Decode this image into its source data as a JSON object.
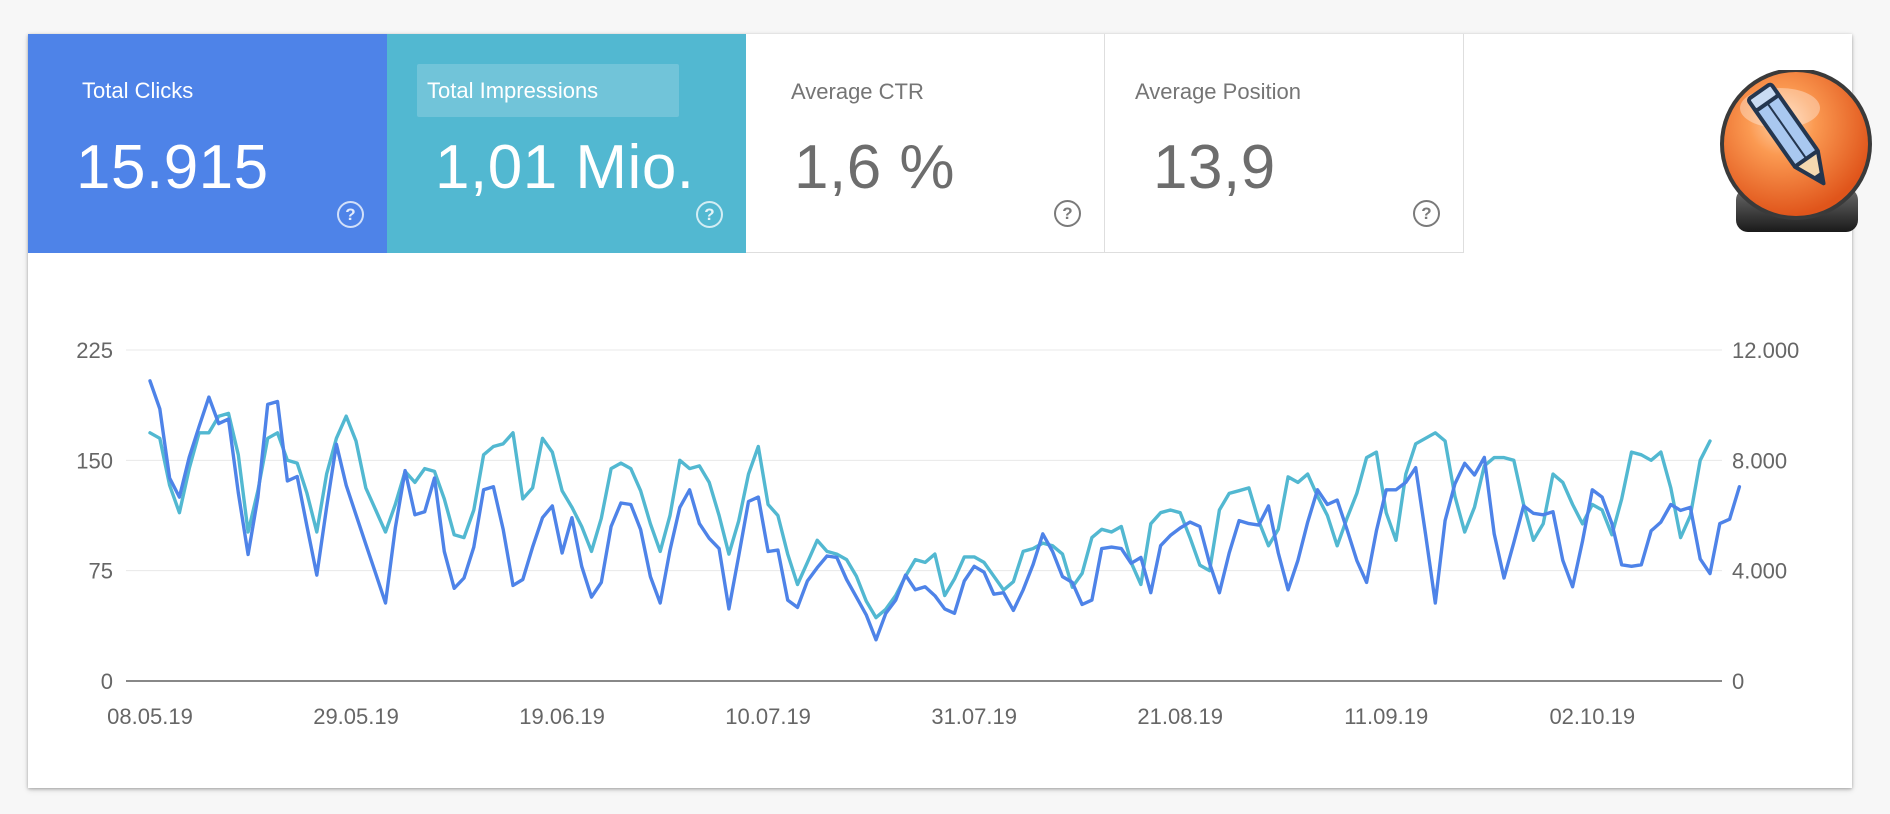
{
  "cards": [
    {
      "label": "Total Clicks",
      "value": "15.915"
    },
    {
      "label": "Total Impressions",
      "value": "1,01 Mio."
    },
    {
      "label": "Average CTR",
      "value": "1,6 %"
    },
    {
      "label": "Average Position",
      "value": "13,9"
    }
  ],
  "help_glyph": "?",
  "badge_icon": "pencil-icon",
  "colors": {
    "clicks": "#4e83e8",
    "impressions": "#52b8d1",
    "grid": "#e8e8e8",
    "axis": "#616161"
  },
  "chart_data": {
    "type": "line",
    "title": "",
    "x_tick_labels": [
      "08.05.19",
      "29.05.19",
      "19.06.19",
      "10.07.19",
      "31.07.19",
      "21.08.19",
      "11.09.19",
      "02.10.19"
    ],
    "x_range": [
      0,
      159
    ],
    "tick_interval_days": 21,
    "left_axis": {
      "ticks": [
        "0",
        "75",
        "150",
        "225"
      ],
      "ylim": [
        0,
        225
      ]
    },
    "right_axis": {
      "ticks": [
        "0",
        "4.000",
        "8.000",
        "12.000"
      ],
      "ylim": [
        0,
        12000
      ]
    },
    "series": [
      {
        "name": "Clicks",
        "axis": "left",
        "values": [
          204,
          185,
          138,
          125,
          152,
          173,
          193,
          175,
          178,
          128,
          86,
          125,
          188,
          190,
          136,
          139,
          105,
          72,
          118,
          161,
          133,
          113,
          93,
          73,
          53,
          104,
          143,
          113,
          115,
          138,
          88,
          63,
          70,
          91,
          130,
          132,
          103,
          65,
          69,
          91,
          111,
          119,
          87,
          111,
          78,
          57,
          67,
          105,
          121,
          120,
          103,
          71,
          53,
          89,
          118,
          130,
          107,
          97,
          90,
          49,
          85,
          122,
          125,
          88,
          89,
          55,
          50,
          68,
          77,
          85,
          84,
          69,
          57,
          45,
          28,
          46,
          55,
          72,
          62,
          64,
          58,
          49,
          46,
          68,
          78,
          74,
          59,
          60,
          48,
          62,
          79,
          100,
          88,
          71,
          67,
          52,
          55,
          90,
          91,
          90,
          80,
          84,
          60,
          92,
          99,
          104,
          108,
          105,
          80,
          60,
          87,
          109,
          107,
          106,
          119,
          87,
          62,
          82,
          108,
          130,
          120,
          123,
          103,
          82,
          67,
          102,
          130,
          130,
          135,
          145,
          100,
          53,
          109,
          134,
          148,
          140,
          152,
          100,
          70,
          94,
          119,
          114,
          113,
          115,
          82,
          64,
          95,
          130,
          125,
          107,
          79,
          78,
          79,
          102,
          108,
          120,
          116,
          118,
          83,
          73,
          107,
          110,
          132
        ]
      },
      {
        "name": "Impressions",
        "axis": "right",
        "values": [
          9000,
          8800,
          7100,
          6100,
          7700,
          9000,
          9000,
          9600,
          9700,
          8200,
          5400,
          6900,
          8800,
          9000,
          8000,
          7900,
          6800,
          5400,
          7500,
          8800,
          9600,
          8700,
          7000,
          6200,
          5400,
          6400,
          7600,
          7200,
          7700,
          7600,
          6600,
          5300,
          5200,
          6200,
          8200,
          8500,
          8600,
          9000,
          6600,
          7000,
          8800,
          8300,
          6900,
          6300,
          5600,
          4700,
          5900,
          7700,
          7900,
          7700,
          6900,
          5700,
          4700,
          6000,
          8000,
          7700,
          7800,
          7200,
          6000,
          4600,
          5800,
          7500,
          8500,
          6400,
          6000,
          4600,
          3500,
          4300,
          5100,
          4700,
          4600,
          4400,
          3800,
          2900,
          2300,
          2600,
          3100,
          3800,
          4400,
          4300,
          4600,
          3100,
          3700,
          4500,
          4500,
          4300,
          3800,
          3300,
          3600,
          4700,
          4800,
          5000,
          4900,
          4600,
          3400,
          3900,
          5200,
          5500,
          5400,
          5600,
          4300,
          3500,
          5700,
          6100,
          6200,
          6100,
          5200,
          4200,
          4000,
          6200,
          6800,
          6900,
          7000,
          5800,
          4900,
          5500,
          7400,
          7200,
          7500,
          6700,
          6000,
          4900,
          5900,
          6800,
          8100,
          8300,
          6100,
          5100,
          7500,
          8600,
          8800,
          9000,
          8700,
          6700,
          5400,
          6300,
          7800,
          8100,
          8100,
          8000,
          6400,
          5100,
          5700,
          7500,
          7200,
          6400,
          5700,
          6400,
          6200,
          5300,
          6600,
          8300,
          8200,
          8000,
          8300,
          7000,
          5200,
          6000,
          8000,
          8700
        ]
      }
    ]
  }
}
